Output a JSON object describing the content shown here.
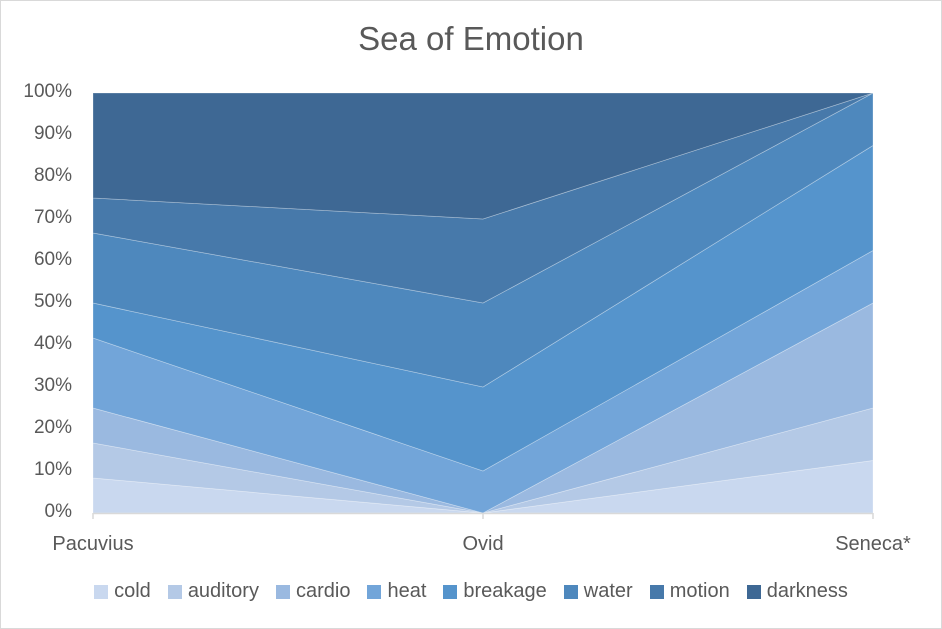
{
  "chart_data": {
    "type": "area",
    "stacked": "percent",
    "title": "Sea of Emotion",
    "xlabel": "",
    "ylabel": "",
    "categories": [
      "Pacuvius",
      "Ovid",
      "Seneca*"
    ],
    "ylim": [
      0,
      100
    ],
    "yticks": [
      "0%",
      "10%",
      "20%",
      "30%",
      "40%",
      "50%",
      "60%",
      "70%",
      "80%",
      "90%",
      "100%"
    ],
    "legend_position": "bottom",
    "grid": false,
    "series": [
      {
        "name": "cold",
        "color": "#C9D8EF",
        "values": [
          8.33,
          0,
          12.5
        ]
      },
      {
        "name": "auditory",
        "color": "#B4C9E6",
        "values": [
          8.33,
          0,
          12.5
        ]
      },
      {
        "name": "cardio",
        "color": "#9AB9E0",
        "values": [
          8.33,
          0,
          25
        ]
      },
      {
        "name": "heat",
        "color": "#72A5D9",
        "values": [
          16.67,
          10,
          12.5
        ]
      },
      {
        "name": "breakage",
        "color": "#5594CC",
        "values": [
          8.33,
          20,
          25
        ]
      },
      {
        "name": "water",
        "color": "#4E88BD",
        "values": [
          16.67,
          20,
          12.5
        ]
      },
      {
        "name": "motion",
        "color": "#4779AA",
        "values": [
          8.33,
          20,
          0
        ]
      },
      {
        "name": "darkness",
        "color": "#3E6894",
        "values": [
          25,
          30,
          0
        ]
      }
    ]
  }
}
